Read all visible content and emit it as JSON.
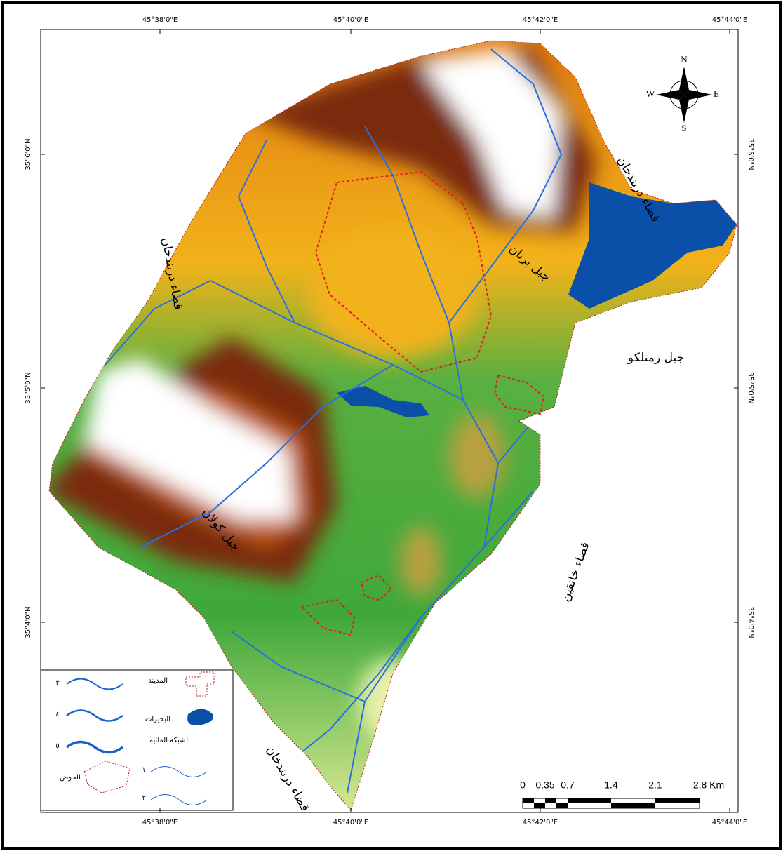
{
  "frame_labels": {
    "top": [
      "45°38'0\"E",
      "45°40'0\"E",
      "45°42'0\"E",
      "45°44'0\"E"
    ],
    "bottom": [
      "45°38'0\"E",
      "45°40'0\"E",
      "45°42'0\"E",
      "45°44'0\"E"
    ],
    "left": [
      "35°6'0\"N",
      "35°5'0\"N",
      "35°4'0\"N"
    ],
    "right": [
      "35°6'0\"N",
      "35°5'0\"N",
      "35°4'0\"N"
    ]
  },
  "place_names": [
    "قضاء دربندخان",
    "قضاء دربندخان",
    "جبل برنان",
    "جبل زمنلكو",
    "جبل كولان",
    "قضاء خانقين",
    "قضاء دربندخان"
  ],
  "compass": {
    "n": "N",
    "e": "E",
    "s": "S",
    "w": "W"
  },
  "legend": {
    "city": "المدينة",
    "lakes": "البحيرات",
    "network": "الشبكة المائية",
    "basin": "الحوض",
    "orders": [
      "٣",
      "٤",
      "٥",
      "١",
      "٢"
    ]
  },
  "scale_bar": {
    "labels": [
      "0",
      "0.35",
      "0.7",
      "1.4",
      "2.1",
      "2.8 Km"
    ]
  }
}
